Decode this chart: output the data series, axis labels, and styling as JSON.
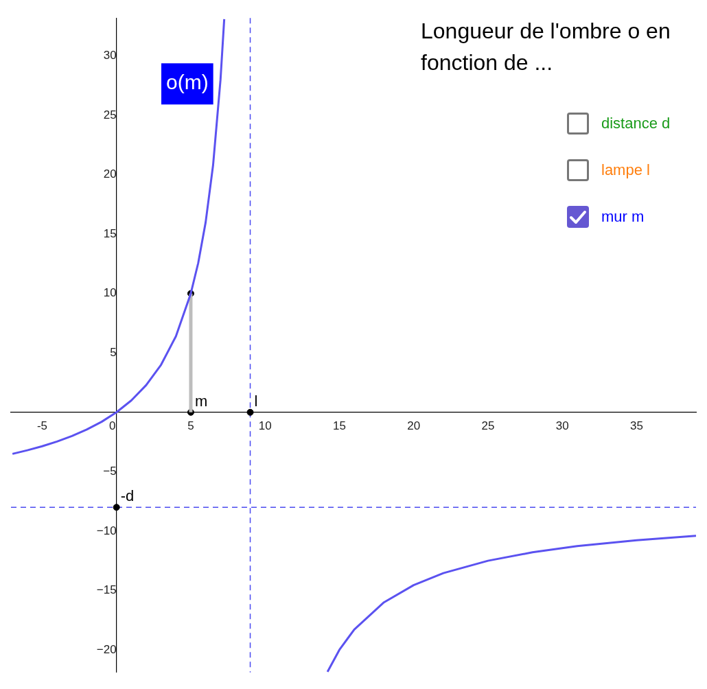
{
  "chart_data": {
    "type": "line",
    "title": "Longueur de l'ombre o en fonction de ...",
    "xlim": [
      -7.1,
      39.0
    ],
    "ylim": [
      -21.9,
      33.2
    ],
    "xticks": [
      -5,
      0,
      5,
      10,
      15,
      20,
      25,
      30,
      35
    ],
    "yticks": [
      {
        "value": -20,
        "label": "−20"
      },
      {
        "value": -15,
        "label": "−15"
      },
      {
        "value": -10,
        "label": "−10"
      },
      {
        "value": -5,
        "label": "−5"
      },
      {
        "value": 0,
        "label": null
      },
      5,
      10,
      15,
      20,
      25,
      30
    ],
    "grid": false,
    "legend": false,
    "marker": "none",
    "series": [
      {
        "name": "o(m)",
        "color": "#5b52f0",
        "x": [
          -7,
          -6,
          -5,
          -4,
          -3,
          -2,
          -1,
          0,
          1,
          2,
          3,
          4,
          5,
          5.5,
          6,
          6.5,
          7,
          7.25
        ],
        "values": [
          -3.5,
          -3.2,
          -2.86,
          -2.46,
          -2,
          -1.45,
          -0.8,
          0,
          1,
          2.29,
          4,
          6.4,
          10,
          12.57,
          16,
          20.8,
          28,
          33.1
        ]
      },
      {
        "color": "#5b52f0",
        "x": [
          14.2,
          15,
          16,
          18,
          20,
          22,
          25,
          28,
          31,
          35,
          39
        ],
        "values": [
          -21.85,
          -20,
          -18.29,
          -16,
          -14.55,
          -13.54,
          -12.5,
          -11.79,
          -11.27,
          -10.77,
          -10.4
        ]
      },
      {
        "type": "line",
        "color": "#bdbdbd",
        "x": [
          5,
          5
        ],
        "values": [
          0,
          10
        ]
      },
      {
        "type": "scatter",
        "marker": "circle",
        "color": "#000000",
        "x": [
          5,
          5,
          9,
          0
        ],
        "values": [
          10,
          0,
          0,
          -8
        ]
      }
    ],
    "ref_lines": [
      {
        "axis": "x",
        "value": 9,
        "color": "#4a4af0",
        "line_style": "dashed"
      },
      {
        "axis": "y",
        "value": -8,
        "color": "#4a4af0",
        "line_style": "dashed"
      }
    ],
    "annotations": [
      "distance d",
      "lampe l",
      "mur m",
      {
        "text": "m",
        "x": 5,
        "y": 0
      },
      {
        "text": "l",
        "x": 9,
        "y": 0
      },
      {
        "text": "-d",
        "x": 0,
        "y": -8
      }
    ]
  }
}
